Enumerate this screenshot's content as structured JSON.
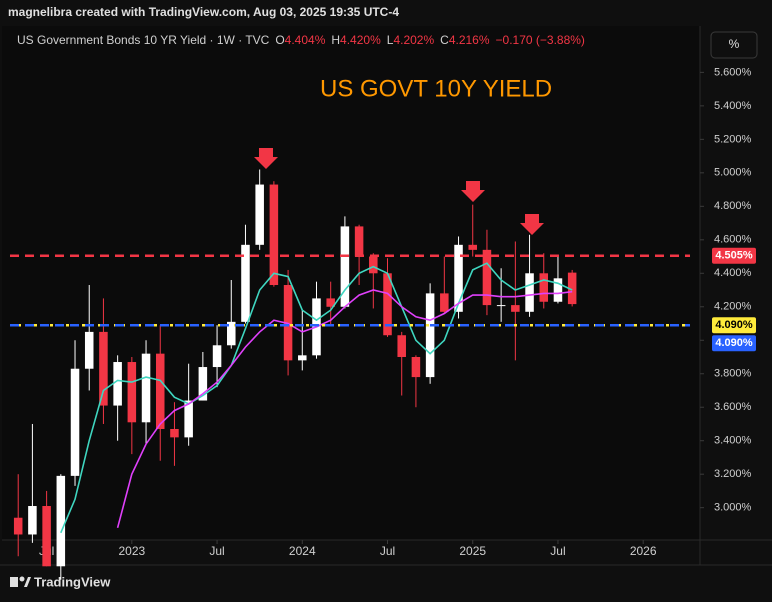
{
  "page_header": "magnelibra created with TradingView.com, Aug 03, 2025 19:35 UTC-4",
  "legend": {
    "symbol": "US Government Bonds 10 YR Yield · 1W · TVC",
    "ohlc": [
      {
        "key": "O",
        "value": "4.404%"
      },
      {
        "key": "H",
        "value": "4.420%"
      },
      {
        "key": "L",
        "value": "4.202%"
      },
      {
        "key": "C",
        "value": "4.216%"
      }
    ],
    "change": "−0.170 (−3.88%)"
  },
  "scale_button": "%",
  "footer": "TradingView",
  "chart_data": {
    "type": "candlestick",
    "title": "US GOVT 10Y YIELD",
    "up_color": "#ffffff",
    "down_color": "#f23645",
    "grid": false,
    "xlim": [
      "2022-04",
      "2026-05"
    ],
    "xticks": [
      {
        "value": "2022-07",
        "label": "Jul"
      },
      {
        "value": "2023-01",
        "label": "2023"
      },
      {
        "value": "2023-07",
        "label": "Jul"
      },
      {
        "value": "2024-01",
        "label": "2024"
      },
      {
        "value": "2024-07",
        "label": "Jul"
      },
      {
        "value": "2025-01",
        "label": "2025"
      },
      {
        "value": "2025-07",
        "label": "Jul"
      },
      {
        "value": "2026-01",
        "label": "2026"
      }
    ],
    "ylim": [
      2.807,
      5.877
    ],
    "yticks": [
      {
        "value": 3.0,
        "label": "3.000%"
      },
      {
        "value": 3.2,
        "label": "3.200%"
      },
      {
        "value": 3.4,
        "label": "3.400%"
      },
      {
        "value": 3.6,
        "label": "3.600%"
      },
      {
        "value": 3.8,
        "label": "3.800%"
      },
      {
        "value": 4.0,
        "label": "4.000%"
      },
      {
        "value": 4.2,
        "label": "4.200%"
      },
      {
        "value": 4.4,
        "label": "4.400%"
      },
      {
        "value": 4.6,
        "label": "4.600%"
      },
      {
        "value": 4.8,
        "label": "4.800%"
      },
      {
        "value": 5.0,
        "label": "5.000%"
      },
      {
        "value": 5.2,
        "label": "5.200%"
      },
      {
        "value": 5.4,
        "label": "5.400%"
      },
      {
        "value": 5.6,
        "label": "5.600%"
      }
    ],
    "x": [
      "2022-05",
      "2022-06",
      "2022-07",
      "2022-08",
      "2022-09",
      "2022-10",
      "2022-11",
      "2022-12",
      "2023-01",
      "2023-02",
      "2023-03",
      "2023-04",
      "2023-05",
      "2023-06",
      "2023-07",
      "2023-08",
      "2023-09",
      "2023-10",
      "2023-11",
      "2023-12",
      "2024-01",
      "2024-02",
      "2024-03",
      "2024-04",
      "2024-05",
      "2024-06",
      "2024-07",
      "2024-08",
      "2024-09",
      "2024-10",
      "2024-11",
      "2024-12",
      "2025-01",
      "2025-02",
      "2025-03",
      "2025-04",
      "2025-05",
      "2025-06",
      "2025-07",
      "2025-08"
    ],
    "open": [
      2.94,
      2.84,
      3.01,
      2.65,
      3.19,
      3.83,
      4.05,
      3.61,
      3.87,
      3.51,
      3.92,
      3.47,
      3.42,
      3.64,
      3.84,
      3.97,
      4.11,
      4.57,
      4.93,
      4.33,
      3.88,
      3.91,
      4.25,
      4.2,
      4.68,
      4.5,
      4.4,
      4.03,
      3.9,
      3.78,
      4.28,
      4.17,
      4.57,
      4.54,
      4.21,
      4.21,
      4.17,
      4.4,
      4.23,
      4.404
    ],
    "high": [
      3.2,
      3.5,
      3.1,
      3.2,
      4.0,
      4.33,
      4.25,
      3.91,
      3.9,
      4.0,
      4.09,
      3.63,
      3.86,
      3.93,
      4.09,
      4.36,
      4.69,
      5.02,
      4.95,
      4.42,
      4.18,
      4.35,
      4.35,
      4.74,
      4.69,
      4.52,
      4.49,
      4.05,
      3.91,
      4.34,
      4.5,
      4.62,
      4.81,
      4.66,
      4.43,
      4.59,
      4.63,
      4.52,
      4.5,
      4.42
    ],
    "low": [
      2.71,
      2.79,
      2.65,
      2.57,
      3.13,
      3.7,
      3.5,
      3.4,
      3.32,
      3.38,
      3.28,
      3.25,
      3.37,
      3.64,
      3.72,
      3.95,
      4.1,
      4.54,
      4.32,
      3.79,
      3.82,
      3.89,
      4.09,
      4.19,
      4.33,
      4.19,
      4.02,
      3.67,
      3.6,
      3.74,
      4.16,
      4.13,
      4.5,
      4.15,
      4.11,
      3.88,
      4.14,
      4.19,
      4.22,
      4.202
    ],
    "close": [
      2.84,
      3.01,
      2.65,
      3.19,
      3.83,
      4.05,
      3.61,
      3.87,
      3.51,
      3.92,
      3.47,
      3.42,
      3.64,
      3.84,
      3.97,
      4.11,
      4.57,
      4.93,
      4.33,
      3.88,
      3.91,
      4.25,
      4.2,
      4.68,
      4.5,
      4.4,
      4.03,
      3.9,
      3.78,
      4.28,
      4.17,
      4.57,
      4.54,
      4.21,
      4.21,
      4.17,
      4.4,
      4.23,
      4.37,
      4.216
    ],
    "series": [
      {
        "color": "#3fd6c0",
        "values": [
          null,
          null,
          null,
          2.85,
          3.05,
          3.4,
          3.7,
          3.76,
          3.75,
          3.78,
          3.76,
          3.66,
          3.62,
          3.67,
          3.73,
          3.85,
          4.07,
          4.3,
          4.4,
          4.38,
          4.18,
          4.12,
          4.18,
          4.3,
          4.4,
          4.44,
          4.4,
          4.2,
          4.0,
          3.92,
          4.0,
          4.22,
          4.42,
          4.46,
          4.36,
          4.3,
          4.33,
          4.36,
          4.34,
          4.3
        ]
      },
      {
        "color": "#e040fb",
        "values": [
          null,
          null,
          null,
          null,
          null,
          null,
          null,
          2.88,
          3.2,
          3.38,
          3.5,
          3.58,
          3.62,
          3.68,
          3.75,
          3.85,
          3.96,
          4.05,
          4.12,
          4.1,
          4.05,
          4.08,
          4.12,
          4.2,
          4.27,
          4.3,
          4.28,
          4.2,
          4.14,
          4.12,
          4.16,
          4.22,
          4.27,
          4.27,
          4.26,
          4.26,
          4.27,
          4.28,
          4.28,
          4.29
        ]
      }
    ],
    "levels": [
      {
        "value": 4.505,
        "label": "4.505%",
        "color": "#f23645",
        "text_color": "#ffffff",
        "style": "dashed"
      },
      {
        "value": 4.09,
        "label": "4.090%",
        "color": "#ffeb3b",
        "text_color": "#000000",
        "style": "dotted"
      },
      {
        "value": 4.09,
        "label": "4.090%",
        "color": "#2962ff",
        "text_color": "#ffffff",
        "style": "dashed"
      }
    ]
  }
}
